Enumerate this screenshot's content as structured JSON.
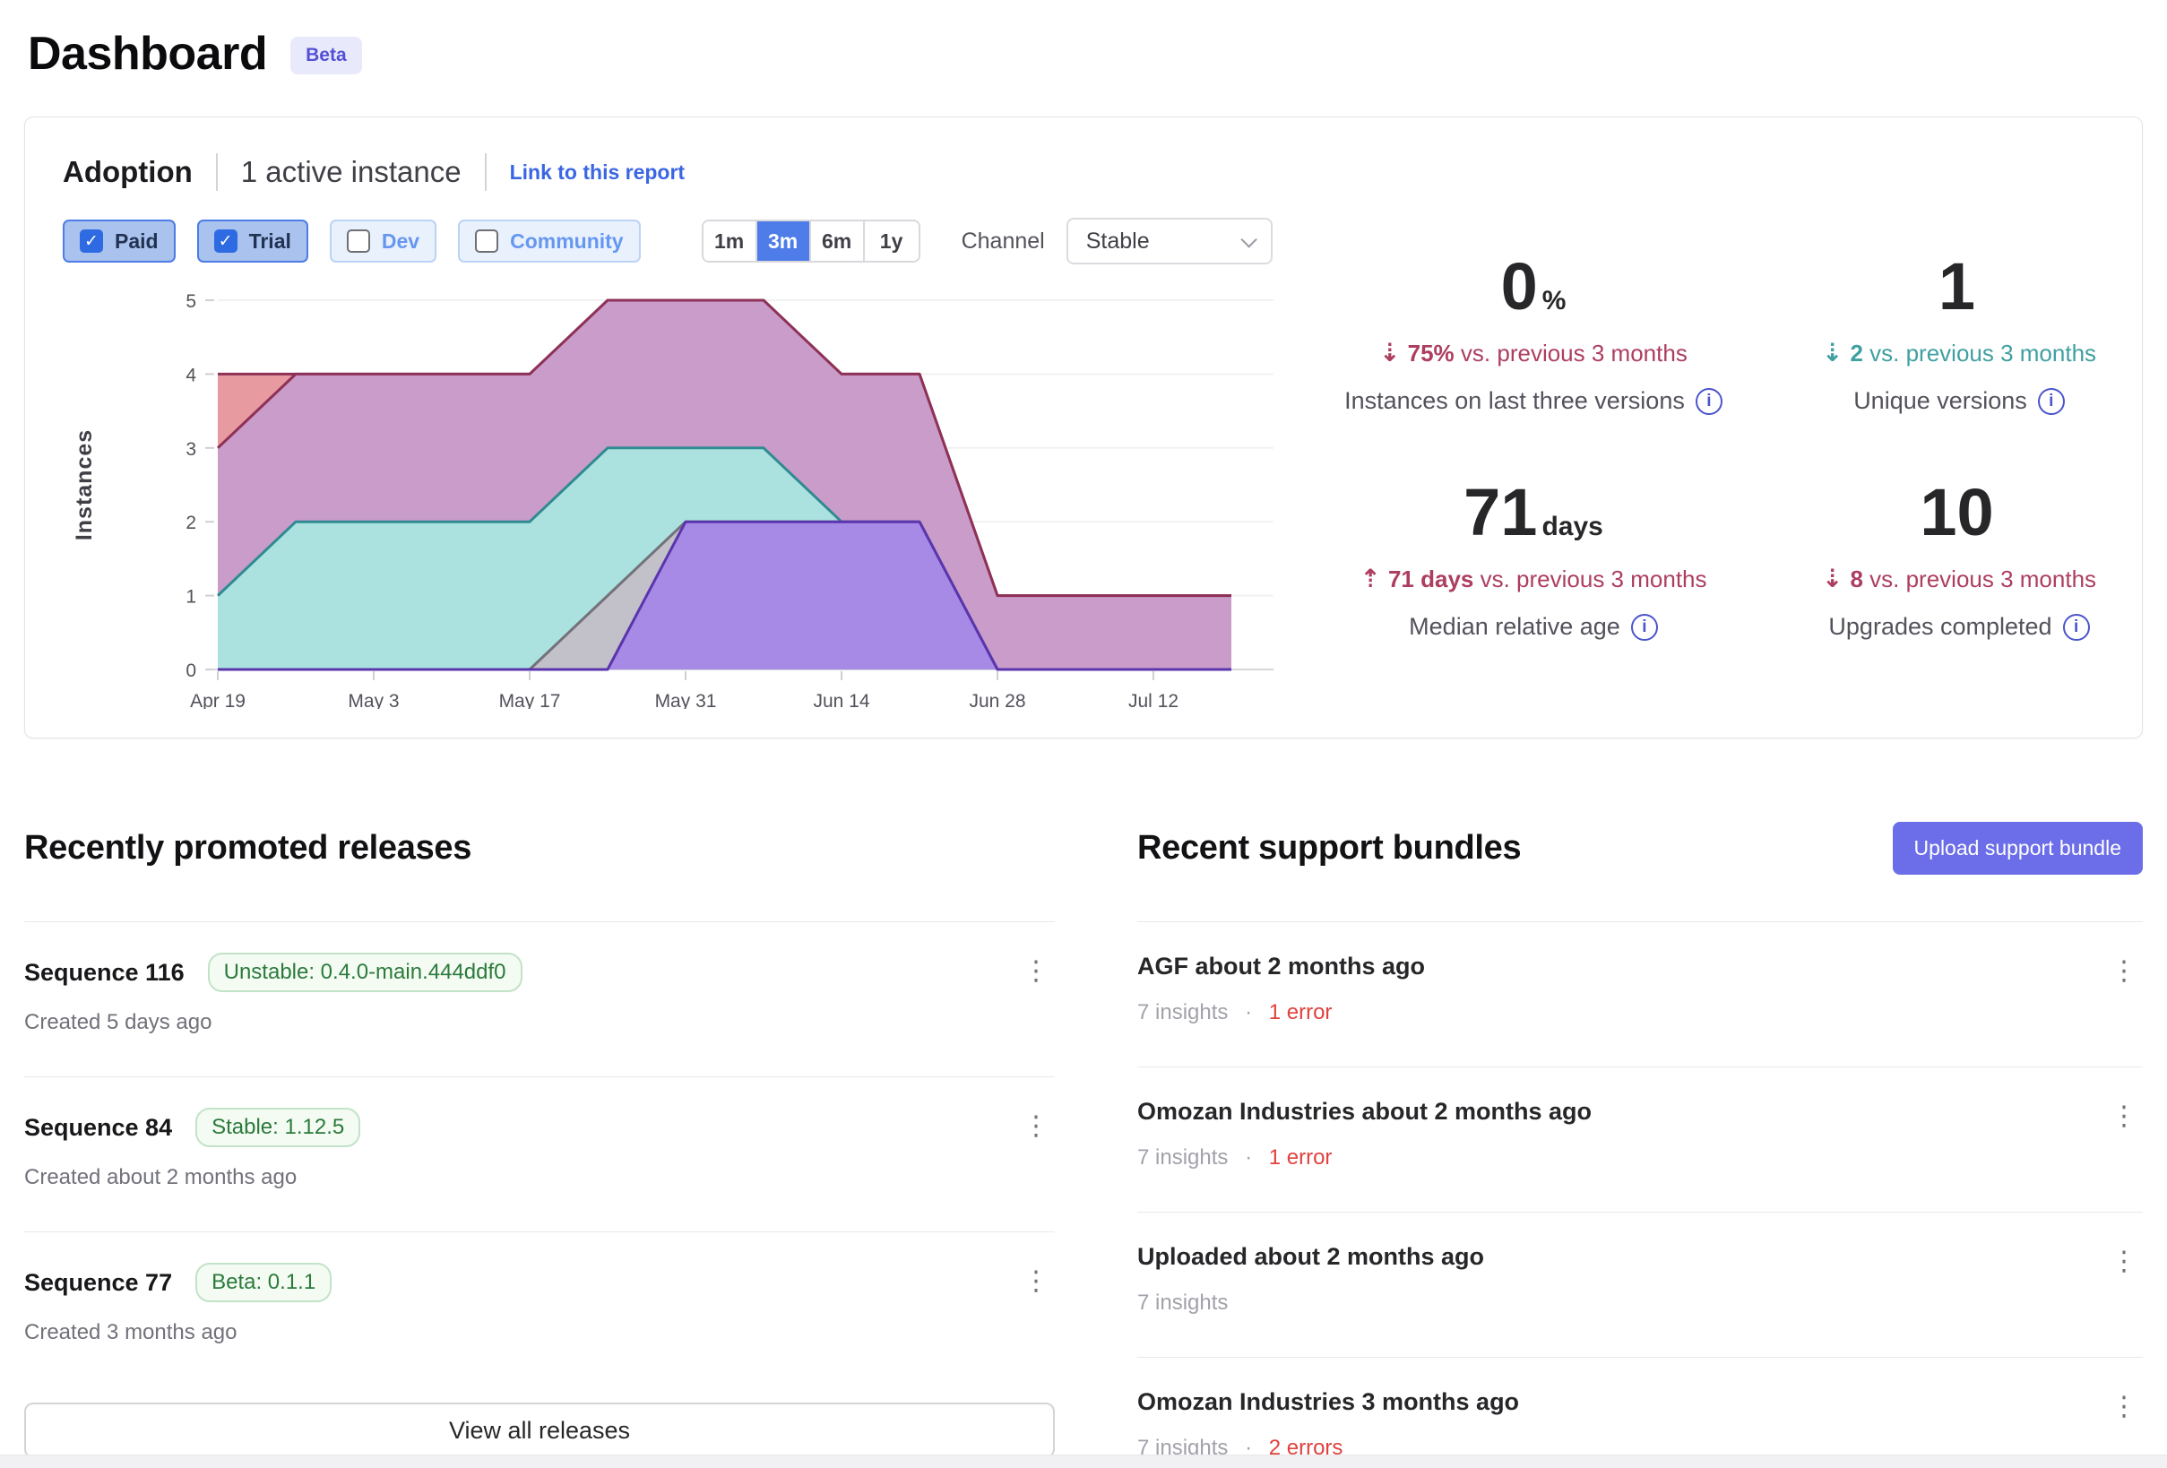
{
  "page": {
    "title": "Dashboard",
    "beta_badge": "Beta"
  },
  "colors": {
    "accent_blue": "#4e7ce8",
    "indigo_button": "#6b6ee8",
    "link_blue": "#3a66e3",
    "delta_negative_rose": "#ad3e60",
    "delta_teal": "#3f9fa1",
    "error_red": "#e0423e",
    "badge_green": "#2c7a3b",
    "beta_purple": "#5450d6"
  },
  "adoption": {
    "title": "Adoption",
    "active_instances": "1 active instance",
    "link_label": "Link to this report",
    "license_filters": [
      {
        "label": "Paid",
        "checked": true
      },
      {
        "label": "Trial",
        "checked": true
      },
      {
        "label": "Dev",
        "checked": false
      },
      {
        "label": "Community",
        "checked": false
      }
    ],
    "time_ranges": [
      {
        "label": "1m",
        "active": false
      },
      {
        "label": "3m",
        "active": true
      },
      {
        "label": "6m",
        "active": false
      },
      {
        "label": "1y",
        "active": false
      }
    ],
    "channel_label": "Channel",
    "channel_value": "Stable",
    "stats": [
      {
        "value": "0",
        "unit": "%",
        "delta_value": "75%",
        "delta_suffix": "vs. previous 3 months",
        "trend": "down",
        "label": "Instances on last three versions"
      },
      {
        "value": "1",
        "unit": "",
        "delta_value": "2",
        "delta_suffix": "vs. previous 3 months",
        "trend": "down",
        "label": "Unique versions"
      },
      {
        "value": "71",
        "unit": "days",
        "delta_value": "71 days",
        "delta_suffix": "vs. previous 3 months",
        "trend": "up",
        "label": "Median relative age"
      },
      {
        "value": "10",
        "unit": "",
        "delta_value": "8",
        "delta_suffix": "vs. previous 3 months",
        "trend": "down",
        "label": "Upgrades completed"
      }
    ]
  },
  "chart_data": {
    "type": "area",
    "title": "",
    "xlabel": "",
    "ylabel": "Instances",
    "ylim": [
      0,
      5
    ],
    "grid": true,
    "legend_position": "none",
    "x": [
      "Apr 19",
      "Apr 26",
      "May 3",
      "May 10",
      "May 17",
      "May 24",
      "May 31",
      "Jun 7",
      "Jun 14",
      "Jun 21",
      "Jun 28",
      "Jul 5",
      "Jul 12",
      "Jul 19"
    ],
    "x_tick_every": 2,
    "series": [
      {
        "name": "version-area-1",
        "fill": "#e79ba0",
        "stroke": "#8e3157",
        "values": [
          4,
          4,
          4,
          4,
          4,
          4,
          4,
          4,
          4,
          4,
          1,
          1,
          1,
          1
        ]
      },
      {
        "name": "version-area-2",
        "fill": "#ca9cca",
        "stroke": "#8e3157",
        "values": [
          3,
          4,
          4,
          4,
          4,
          5,
          5,
          5,
          4,
          4,
          1,
          1,
          1,
          1
        ]
      },
      {
        "name": "version-area-3",
        "fill": "#abe2df",
        "stroke": "#2f8b91",
        "values": [
          1,
          2,
          2,
          2,
          2,
          3,
          3,
          3,
          2,
          2,
          0,
          0,
          0,
          0
        ]
      },
      {
        "name": "version-area-4",
        "fill": "#c2c1c9",
        "stroke": "#73727b",
        "values": [
          0,
          0,
          0,
          0,
          0,
          1,
          2,
          2,
          2,
          2,
          0,
          0,
          0,
          0
        ]
      },
      {
        "name": "version-area-5",
        "fill": "#a78ae6",
        "stroke": "#5a35ad",
        "values": [
          0,
          0,
          0,
          0,
          0,
          0,
          2,
          2,
          2,
          2,
          0,
          0,
          0,
          0
        ]
      }
    ]
  },
  "releases": {
    "heading": "Recently promoted releases",
    "view_all_label": "View all releases",
    "items": [
      {
        "title": "Sequence 116",
        "badge": "Unstable: 0.4.0-main.444ddf0",
        "created": "Created 5 days ago"
      },
      {
        "title": "Sequence 84",
        "badge": "Stable: 1.12.5",
        "created": "Created about 2 months ago"
      },
      {
        "title": "Sequence 77",
        "badge": "Beta: 0.1.1",
        "created": "Created 3 months ago"
      }
    ]
  },
  "support_bundles": {
    "heading": "Recent support bundles",
    "upload_label": "Upload support bundle",
    "items": [
      {
        "title": "AGF about 2 months ago",
        "insights": "7 insights",
        "sep": "·",
        "errors": "1 error"
      },
      {
        "title": "Omozan Industries about 2 months ago",
        "insights": "7 insights",
        "sep": "·",
        "errors": "1 error"
      },
      {
        "title": "Uploaded about 2 months ago",
        "insights": "7 insights",
        "sep": "",
        "errors": ""
      },
      {
        "title": "Omozan Industries 3 months ago",
        "insights": "7 insights",
        "sep": "·",
        "errors": "2 errors"
      }
    ]
  }
}
